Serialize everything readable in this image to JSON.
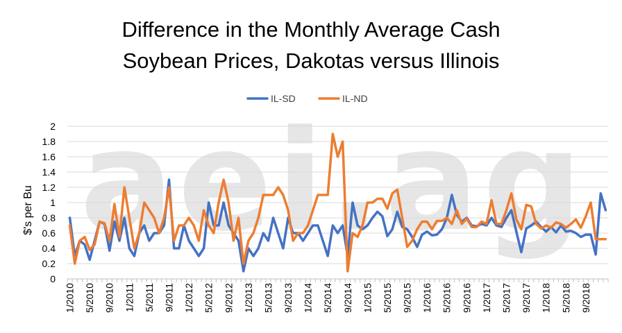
{
  "chart_data": {
    "type": "line",
    "title_lines": [
      "Difference in the Monthly Average Cash",
      "Soybean Prices, Dakotas versus Illinois"
    ],
    "ylabel": "$'s per Bu",
    "xlabel": "",
    "ylim": [
      0,
      2
    ],
    "y_ticks": [
      "0",
      "0.2",
      "0.4",
      "0.6",
      "0.8",
      "1",
      "1.2",
      "1.4",
      "1.6",
      "1.8",
      "2"
    ],
    "x_tick_labels": [
      "1/2010",
      "5/2010",
      "9/2010",
      "1/2011",
      "5/2011",
      "9/2011",
      "1/2012",
      "5/2012",
      "9/2012",
      "1/2013",
      "5/2013",
      "9/2013",
      "1/2014",
      "5/2014",
      "9/2014",
      "1/2015",
      "5/2015",
      "9/2015",
      "1/2016",
      "5/2016",
      "9/2016",
      "1/2017",
      "5/2017",
      "9/2017",
      "1/2018",
      "5/2018",
      "9/2018"
    ],
    "grid": "horizontal",
    "legend_position": "top",
    "watermark": "aei.ag",
    "series": [
      {
        "name": "IL-SD",
        "color": "#4472C4",
        "values": [
          0.8,
          0.3,
          0.5,
          0.45,
          0.25,
          0.5,
          0.75,
          0.72,
          0.37,
          0.75,
          0.5,
          0.8,
          0.4,
          0.3,
          0.6,
          0.7,
          0.5,
          0.6,
          0.6,
          0.7,
          1.3,
          0.4,
          0.4,
          0.7,
          0.5,
          0.4,
          0.3,
          0.4,
          1.0,
          0.7,
          0.7,
          1.0,
          0.7,
          0.6,
          0.5,
          0.1,
          0.4,
          0.3,
          0.4,
          0.6,
          0.5,
          0.8,
          0.6,
          0.4,
          0.8,
          0.6,
          0.6,
          0.5,
          0.6,
          0.7,
          0.7,
          0.5,
          0.3,
          0.7,
          0.6,
          0.7,
          0.3,
          1.0,
          0.7,
          0.65,
          0.7,
          0.8,
          0.88,
          0.82,
          0.56,
          0.65,
          0.88,
          0.68,
          0.65,
          0.55,
          0.42,
          0.58,
          0.62,
          0.57,
          0.58,
          0.65,
          0.8,
          1.1,
          0.84,
          0.75,
          0.8,
          0.7,
          0.69,
          0.72,
          0.7,
          0.8,
          0.7,
          0.68,
          0.8,
          0.9,
          0.62,
          0.35,
          0.66,
          0.7,
          0.75,
          0.68,
          0.62,
          0.68,
          0.61,
          0.7,
          0.62,
          0.63,
          0.6,
          0.55,
          0.58,
          0.58,
          0.32,
          1.12,
          0.9
        ]
      },
      {
        "name": "IL-ND",
        "color": "#ED7D31",
        "values": [
          0.7,
          0.2,
          0.5,
          0.55,
          0.38,
          0.45,
          0.75,
          0.73,
          0.5,
          0.98,
          0.55,
          1.2,
          0.8,
          0.4,
          0.6,
          1.0,
          0.9,
          0.8,
          0.6,
          0.8,
          1.2,
          0.5,
          0.7,
          0.7,
          0.8,
          0.7,
          0.5,
          0.9,
          0.7,
          0.6,
          1.0,
          1.3,
          1.0,
          0.5,
          0.8,
          0.2,
          0.5,
          0.6,
          0.8,
          1.1,
          1.1,
          1.1,
          1.2,
          1.1,
          0.9,
          0.5,
          0.6,
          0.6,
          0.7,
          0.9,
          1.1,
          1.1,
          1.1,
          1.9,
          1.6,
          1.8,
          0.1,
          0.6,
          0.55,
          0.7,
          1.0,
          1.0,
          1.05,
          1.05,
          0.92,
          1.12,
          1.17,
          0.8,
          0.42,
          0.5,
          0.65,
          0.75,
          0.75,
          0.65,
          0.76,
          0.76,
          0.8,
          0.72,
          0.9,
          0.72,
          0.79,
          0.68,
          0.68,
          0.75,
          0.72,
          1.03,
          0.72,
          0.72,
          0.9,
          1.12,
          0.78,
          0.65,
          0.97,
          0.95,
          0.72,
          0.66,
          0.7,
          0.67,
          0.74,
          0.72,
          0.67,
          0.72,
          0.78,
          0.67,
          0.82,
          1.0,
          0.52,
          0.52,
          0.52
        ]
      }
    ]
  }
}
